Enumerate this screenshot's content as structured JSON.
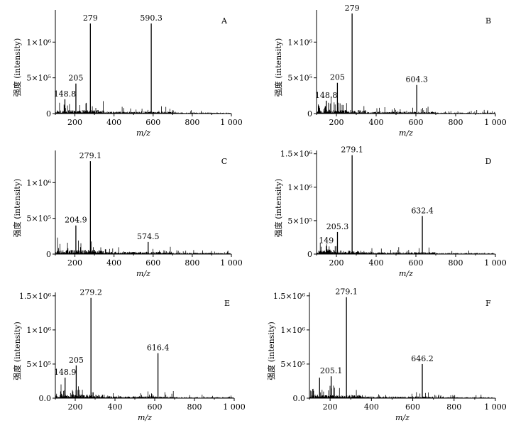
{
  "chart_data": [
    {
      "panel": "A",
      "type": "line",
      "xlabel": "m/z",
      "ylabel": "强度 (intensity)",
      "xlim": [
        100,
        1000
      ],
      "ylim": [
        0,
        1450000
      ],
      "x_ticks": [
        200,
        400,
        600,
        800,
        1000
      ],
      "x_tick_labels": [
        "200",
        "400",
        "600",
        "800",
        "1 000"
      ],
      "y_ticks": [
        0,
        500000,
        1000000
      ],
      "y_tick_labels": [
        "0",
        "5×10⁵",
        "1×10⁶"
      ],
      "peaks": [
        {
          "x": 148.8,
          "y": 200000,
          "label": "148.8"
        },
        {
          "x": 205,
          "y": 420000,
          "label": "205"
        },
        {
          "x": 279,
          "y": 1260000,
          "label": "279"
        },
        {
          "x": 590.3,
          "y": 1260000,
          "label": "590.3"
        }
      ],
      "noise_seed": 11,
      "noise_scale": 1.0
    },
    {
      "panel": "B",
      "type": "line",
      "xlabel": "m/z",
      "ylabel": "强度 (intensity)",
      "xlim": [
        100,
        1000
      ],
      "ylim": [
        0,
        1450000
      ],
      "x_ticks": [
        200,
        400,
        600,
        800,
        1000
      ],
      "x_tick_labels": [
        "200",
        "400",
        "600",
        "800",
        "1 000"
      ],
      "y_ticks": [
        0,
        500000,
        1000000
      ],
      "y_tick_labels": [
        "0",
        "5×10⁵",
        "1×10⁶"
      ],
      "peaks": [
        {
          "x": 148.8,
          "y": 180000,
          "label": "148.8"
        },
        {
          "x": 205,
          "y": 430000,
          "label": "205"
        },
        {
          "x": 279,
          "y": 1400000,
          "label": "279"
        },
        {
          "x": 604.3,
          "y": 400000,
          "label": "604.3"
        }
      ],
      "noise_seed": 23,
      "noise_scale": 1.0
    },
    {
      "panel": "C",
      "type": "line",
      "xlabel": "m/z",
      "ylabel": "强度 (intensity)",
      "xlim": [
        100,
        1000
      ],
      "ylim": [
        0,
        1450000
      ],
      "x_ticks": [
        200,
        400,
        600,
        800,
        1000
      ],
      "x_tick_labels": [
        "200",
        "400",
        "600",
        "800",
        "1 000"
      ],
      "y_ticks": [
        0,
        500000,
        1000000
      ],
      "y_tick_labels": [
        "0",
        "5×10⁵",
        "1×10⁶"
      ],
      "peaks": [
        {
          "x": 204.9,
          "y": 400000,
          "label": "204.9"
        },
        {
          "x": 279.1,
          "y": 1300000,
          "label": "279.1"
        },
        {
          "x": 574.5,
          "y": 170000,
          "label": "574.5"
        }
      ],
      "noise_seed": 37,
      "noise_scale": 1.2
    },
    {
      "panel": "D",
      "type": "line",
      "xlabel": "m/z",
      "ylabel": "强度 (intensity)",
      "xlim": [
        100,
        1000
      ],
      "ylim": [
        0,
        1550000
      ],
      "x_ticks": [
        200,
        400,
        600,
        800,
        1000
      ],
      "x_tick_labels": [
        "200",
        "400",
        "600",
        "800",
        "1 000"
      ],
      "y_ticks": [
        0,
        500000,
        1000000,
        1500000
      ],
      "y_tick_labels": [
        "0",
        "5×10⁵",
        "1×10⁶",
        "1.5×10⁶"
      ],
      "peaks": [
        {
          "x": 149,
          "y": 120000,
          "label": "149"
        },
        {
          "x": 205.3,
          "y": 330000,
          "label": "205.3"
        },
        {
          "x": 279.1,
          "y": 1480000,
          "label": "279.1"
        },
        {
          "x": 632.4,
          "y": 570000,
          "label": "632.4"
        }
      ],
      "noise_seed": 41,
      "noise_scale": 1.0
    },
    {
      "panel": "E",
      "type": "line",
      "xlabel": "m/z",
      "ylabel": "强度 (intensity)",
      "xlim": [
        100,
        1000
      ],
      "ylim": [
        0,
        1550000
      ],
      "x_ticks": [
        200,
        400,
        600,
        800,
        1000
      ],
      "x_tick_labels": [
        "200",
        "400",
        "600",
        "800",
        "1 000"
      ],
      "y_ticks": [
        0,
        500000,
        1000000,
        1500000
      ],
      "y_tick_labels": [
        "0.0",
        "5×10⁵",
        "1×10⁶",
        "1.5×10⁶"
      ],
      "peaks": [
        {
          "x": 148.9,
          "y": 300000,
          "label": "148.9"
        },
        {
          "x": 205,
          "y": 480000,
          "label": "205"
        },
        {
          "x": 279.2,
          "y": 1470000,
          "label": "279.2"
        },
        {
          "x": 616.4,
          "y": 660000,
          "label": "616.4"
        }
      ],
      "noise_seed": 53,
      "noise_scale": 1.0
    },
    {
      "panel": "F",
      "type": "line",
      "xlabel": "m/z",
      "ylabel": "强度 (intensity)",
      "xlim": [
        100,
        1000
      ],
      "ylim": [
        0,
        1550000
      ],
      "x_ticks": [
        200,
        400,
        600,
        800,
        1000
      ],
      "x_tick_labels": [
        "200",
        "400",
        "600",
        "800",
        "1 000"
      ],
      "y_ticks": [
        0,
        500000,
        1000000,
        1500000
      ],
      "y_tick_labels": [
        "0.0",
        "5×10⁵",
        "1×10⁶",
        "1.5×10⁶"
      ],
      "peaks": [
        {
          "x": 149,
          "y": 300000,
          "label": ""
        },
        {
          "x": 205.1,
          "y": 320000,
          "label": "205.1"
        },
        {
          "x": 279.1,
          "y": 1480000,
          "label": "279.1"
        },
        {
          "x": 646.2,
          "y": 500000,
          "label": "646.2"
        }
      ],
      "noise_seed": 67,
      "noise_scale": 0.9
    }
  ]
}
